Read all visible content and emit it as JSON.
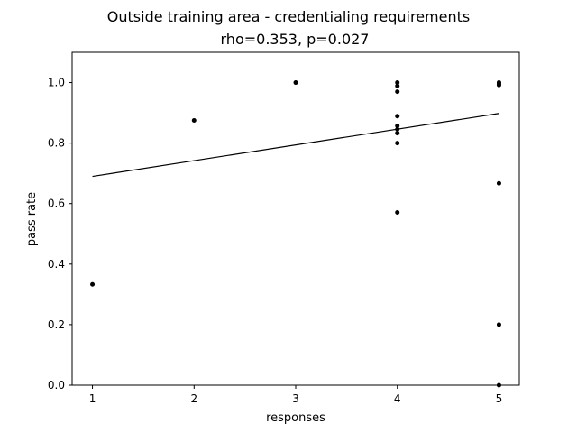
{
  "chart_data": {
    "type": "scatter",
    "title": "Outside training area - credentialing requirements",
    "subtitle": "rho=0.353, p=0.027",
    "xlabel": "responses",
    "ylabel": "pass rate",
    "xlim": [
      0.8,
      5.2
    ],
    "ylim": [
      0.0,
      1.1
    ],
    "x_ticks": [
      "1",
      "2",
      "3",
      "4",
      "5"
    ],
    "y_ticks": [
      "0.0",
      "0.2",
      "0.4",
      "0.6",
      "0.8",
      "1.0"
    ],
    "grid": false,
    "points": [
      {
        "x": 1,
        "y": 0.333
      },
      {
        "x": 2,
        "y": 0.875
      },
      {
        "x": 3,
        "y": 1.0
      },
      {
        "x": 4,
        "y": 1.0
      },
      {
        "x": 4,
        "y": 0.989
      },
      {
        "x": 4,
        "y": 0.97
      },
      {
        "x": 4,
        "y": 0.889
      },
      {
        "x": 4,
        "y": 0.857
      },
      {
        "x": 4,
        "y": 0.846
      },
      {
        "x": 4,
        "y": 0.833
      },
      {
        "x": 4,
        "y": 0.8
      },
      {
        "x": 4,
        "y": 0.571
      },
      {
        "x": 5,
        "y": 1.0
      },
      {
        "x": 5,
        "y": 0.996
      },
      {
        "x": 5,
        "y": 0.992
      },
      {
        "x": 5,
        "y": 0.667
      },
      {
        "x": 5,
        "y": 0.2
      },
      {
        "x": 5,
        "y": 0.0
      }
    ],
    "trendline": {
      "x": [
        1,
        5
      ],
      "y": [
        0.69,
        0.898
      ]
    },
    "colors": {
      "points": "#000000",
      "line": "#000000",
      "axes": "#000000"
    }
  }
}
